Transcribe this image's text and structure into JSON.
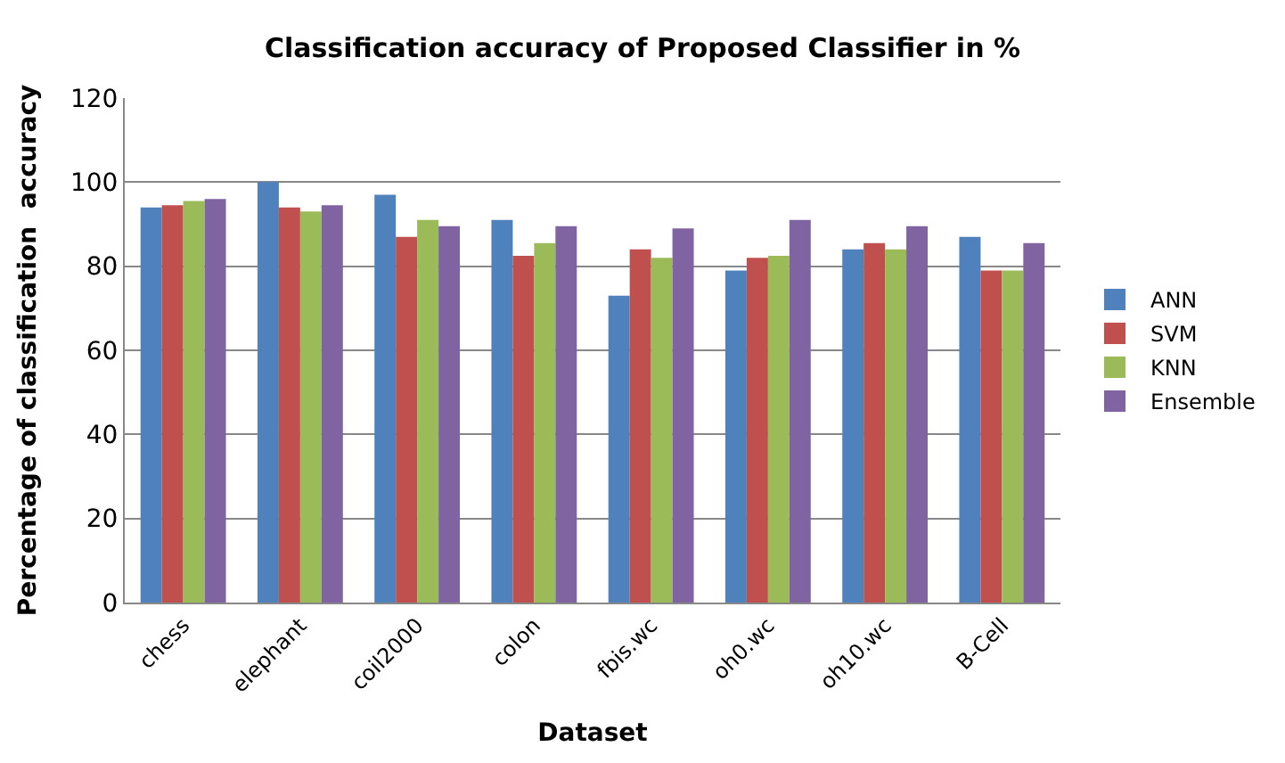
{
  "chart_data": {
    "type": "bar",
    "title": "Classification accuracy of Proposed Classifier in %",
    "xlabel": "Dataset",
    "ylabel": "Percentage of classification  accuracy",
    "categories": [
      "chess",
      "elephant",
      "coil2000",
      "colon",
      "fbis.wc",
      "oh0.wc",
      "oh10.wc",
      "B-Cell"
    ],
    "series": [
      {
        "name": "ANN",
        "color": "#4f81bd",
        "values": [
          94,
          100,
          97,
          91,
          73,
          79,
          84,
          87
        ]
      },
      {
        "name": "SVM",
        "color": "#c0504d",
        "values": [
          94.5,
          94,
          87,
          82.5,
          84,
          82,
          85.5,
          79
        ]
      },
      {
        "name": "KNN",
        "color": "#9bbb59",
        "values": [
          95.5,
          93,
          91,
          85.5,
          82,
          82.5,
          84,
          79
        ]
      },
      {
        "name": "Ensemble",
        "color": "#8064a2",
        "values": [
          96,
          94.5,
          89.5,
          89.5,
          89,
          91,
          89.5,
          85.5
        ]
      }
    ],
    "ylim": [
      0,
      120
    ],
    "yticks": [
      0,
      20,
      40,
      60,
      80,
      100,
      120
    ],
    "grid": "y",
    "legend": "right"
  }
}
